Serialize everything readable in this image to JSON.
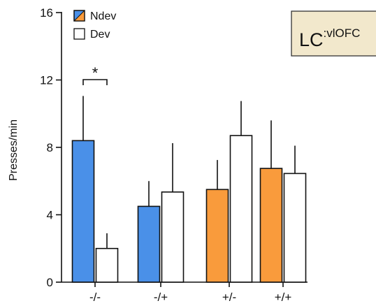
{
  "chart_data": {
    "type": "bar",
    "ylabel": "Presses/min",
    "ylim": [
      0,
      16
    ],
    "yticks": [
      0,
      4,
      8,
      12,
      16
    ],
    "categories": [
      "-/-",
      "-/+",
      "+/-",
      "+/+"
    ],
    "series": [
      {
        "name": "Ndev",
        "values": [
          8.4,
          4.5,
          5.5,
          6.75
        ],
        "errors": [
          2.65,
          1.5,
          1.75,
          2.85
        ]
      },
      {
        "name": "Dev",
        "values": [
          2.0,
          5.35,
          8.7,
          6.45
        ],
        "errors": [
          0.9,
          2.9,
          2.05,
          1.65
        ]
      }
    ],
    "bar_colors": [
      [
        "#4a90e8",
        "#ffffff"
      ],
      [
        "#4a90e8",
        "#ffffff"
      ],
      [
        "#f99b3c",
        "#ffffff"
      ],
      [
        "#f99b3c",
        "#ffffff"
      ]
    ],
    "legend": {
      "position": "top-left",
      "ndev_colors": [
        "#f99b3c",
        "#4a90e8"
      ]
    },
    "annotation": {
      "text": "*",
      "category": "-/-"
    },
    "inset_label": {
      "main": "LC",
      "superscript": ":vlOFC",
      "background": "#f2e8cc"
    }
  }
}
